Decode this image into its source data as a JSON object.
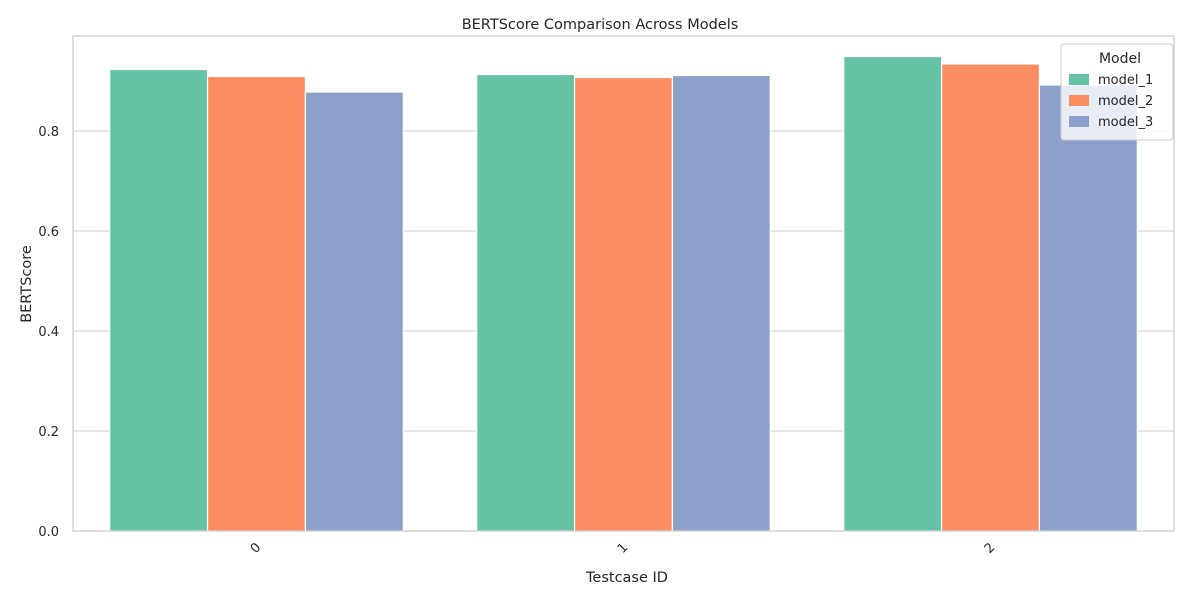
{
  "chart_data": {
    "type": "bar",
    "title": "BERTScore Comparison Across Models",
    "xlabel": "Testcase ID",
    "ylabel": "BERTScore",
    "categories": [
      "0",
      "1",
      "2"
    ],
    "series": [
      {
        "name": "model_1",
        "values": [
          0.923,
          0.913,
          0.949
        ],
        "color": "#66c2a5"
      },
      {
        "name": "model_2",
        "values": [
          0.909,
          0.907,
          0.934
        ],
        "color": "#fc8d62"
      },
      {
        "name": "model_3",
        "values": [
          0.878,
          0.911,
          0.892
        ],
        "color": "#8da0cb"
      }
    ],
    "ylim": [
      0,
      0.99
    ],
    "yticks": [
      0.0,
      0.2,
      0.4,
      0.6,
      0.8
    ],
    "ytick_labels": [
      "0.0",
      "0.2",
      "0.4",
      "0.6",
      "0.8"
    ],
    "grid": "y",
    "legend": {
      "title": "Model",
      "placement": "top-right"
    },
    "xtick_rotation": 45
  }
}
